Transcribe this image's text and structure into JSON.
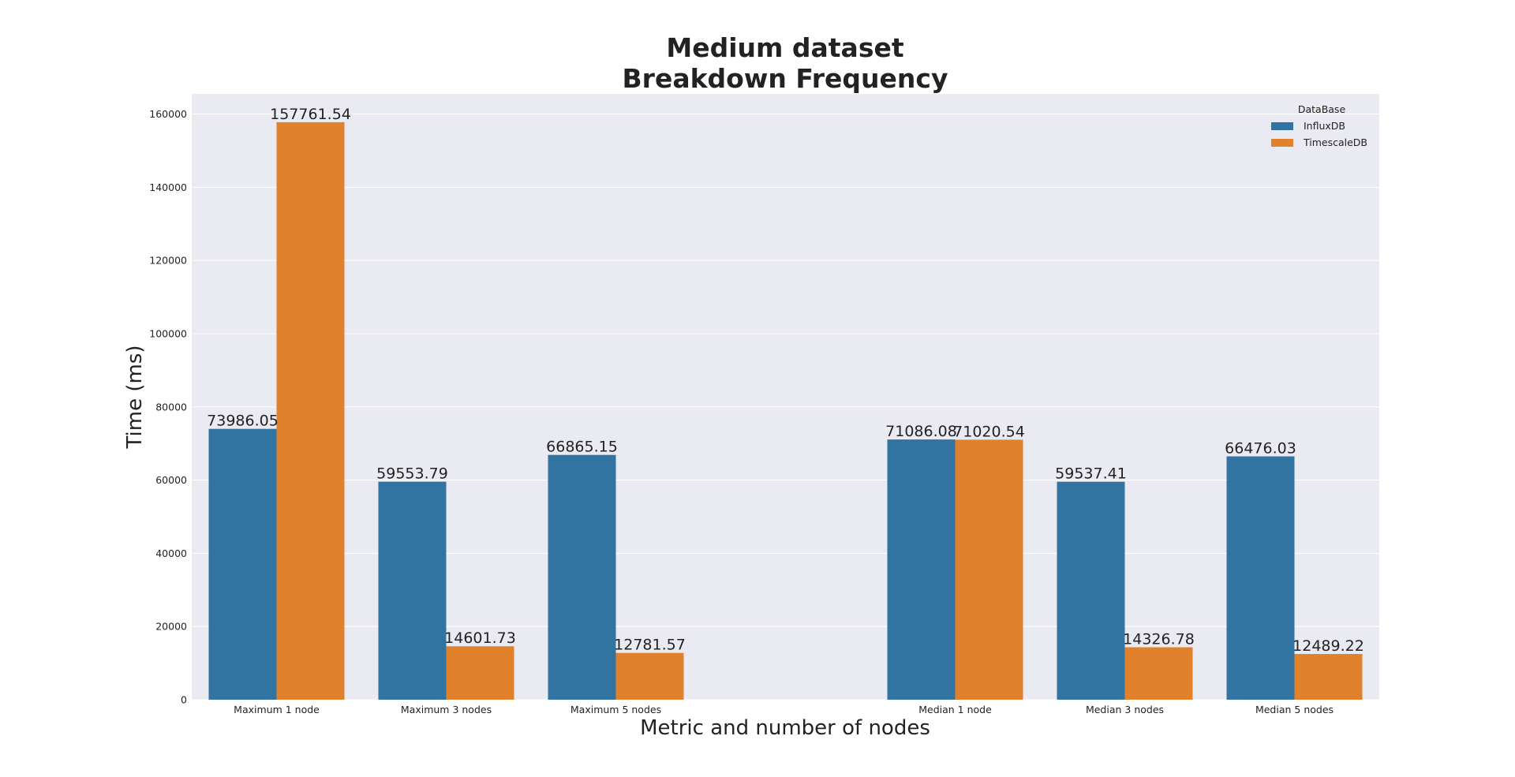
{
  "chart_data": {
    "type": "bar",
    "title_lines": [
      "Medium dataset",
      "Breakdown Frequency"
    ],
    "xlabel": "Metric and number of nodes",
    "ylabel": "Time (ms)",
    "categories": [
      "Maximum 1 node",
      "Maximum 3 nodes",
      "Maximum 5 nodes",
      "",
      "Median 1 node",
      "Median 3 nodes",
      "Median 5 nodes"
    ],
    "series": [
      {
        "name": "InfluxDB",
        "color": "#3274a1",
        "values": [
          73986.05,
          59553.79,
          66865.15,
          null,
          71086.08,
          59537.41,
          66476.03
        ],
        "labels": [
          "73986.05",
          "59553.79",
          "66865.15",
          "",
          "71086.08",
          "59537.41",
          "66476.03"
        ]
      },
      {
        "name": "TimescaleDB",
        "color": "#e1812c",
        "values": [
          157761.54,
          14601.73,
          12781.57,
          null,
          71020.54,
          14326.78,
          12489.22
        ],
        "labels": [
          "157761.54",
          "14601.73",
          "12781.57",
          "",
          "71020.54",
          "14326.78",
          "12489.22"
        ]
      }
    ],
    "yticks": [
      0,
      20000,
      40000,
      60000,
      80000,
      100000,
      120000,
      140000,
      160000
    ],
    "ylim": [
      0,
      165500
    ],
    "grid": true,
    "legend": {
      "title": "DataBase",
      "position": "top-right"
    },
    "background_color": "#eaeaf2",
    "grid_color": "#ffffff"
  }
}
